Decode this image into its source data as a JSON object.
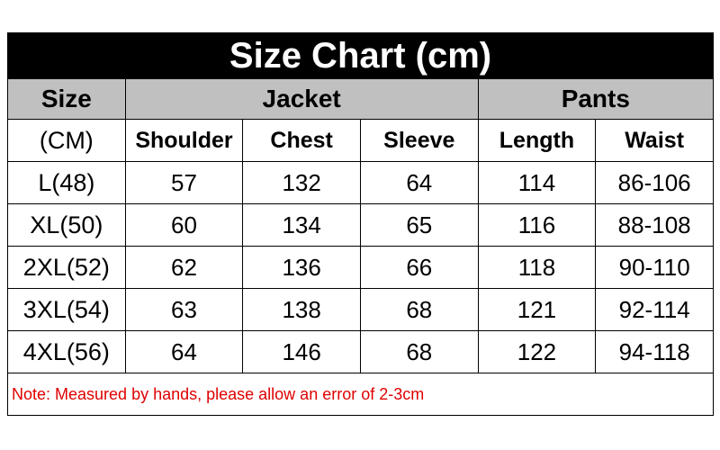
{
  "title": "Size Chart (cm)",
  "groups": {
    "size": "Size",
    "jacket": "Jacket",
    "pants": "Pants"
  },
  "headers": [
    "(CM)",
    "Shoulder",
    "Chest",
    "Sleeve",
    "Length",
    "Waist"
  ],
  "rows": [
    [
      "L(48)",
      "57",
      "132",
      "64",
      "114",
      "86-106"
    ],
    [
      "XL(50)",
      "60",
      "134",
      "65",
      "116",
      "88-108"
    ],
    [
      "2XL(52)",
      "62",
      "136",
      "66",
      "118",
      "90-110"
    ],
    [
      "3XL(54)",
      "63",
      "138",
      "68",
      "121",
      "92-114"
    ],
    [
      "4XL(56)",
      "64",
      "146",
      "68",
      "122",
      "94-118"
    ]
  ],
  "note": "Note: Measured by hands, please allow an error of 2-3cm",
  "colors": {
    "header_bg": "#000000",
    "group_bg": "#c0c0c0",
    "note": "#e00000"
  }
}
